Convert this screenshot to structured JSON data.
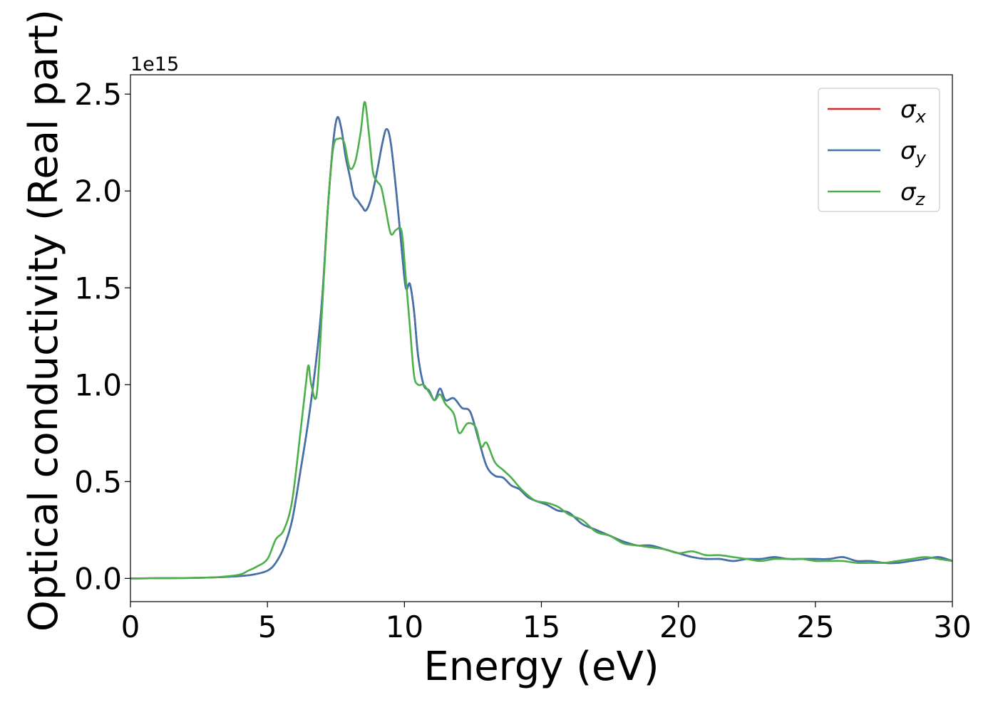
{
  "chart_data": {
    "type": "line",
    "title": "",
    "xlabel": "Energy (eV)",
    "ylabel": "Optical conductivity (Real part)",
    "y_offset_text": "1e15",
    "y_scale": 1000000000000000.0,
    "xlim": [
      0,
      30
    ],
    "ylim": [
      -0.12,
      2.6
    ],
    "x_ticks": [
      0,
      5,
      10,
      15,
      20,
      25,
      30
    ],
    "x_tick_labels": [
      "0",
      "5",
      "10",
      "15",
      "20",
      "25",
      "30"
    ],
    "y_ticks": [
      0.0,
      0.5,
      1.0,
      1.5,
      2.0,
      2.5
    ],
    "y_tick_labels": [
      "0.0",
      "0.5",
      "1.0",
      "1.5",
      "2.0",
      "2.5"
    ],
    "grid": false,
    "legend_position": "top-right",
    "series": [
      {
        "name": "σx",
        "symbol": "σ",
        "subscript": "x",
        "color": "#d62728",
        "x": [
          0,
          2,
          3,
          3.5,
          4,
          4.5,
          5,
          5.3,
          5.6,
          5.9,
          6.2,
          6.5,
          6.8,
          7.0,
          7.2,
          7.4,
          7.55,
          7.7,
          7.85,
          8.0,
          8.15,
          8.3,
          8.45,
          8.6,
          8.8,
          9.0,
          9.2,
          9.35,
          9.5,
          9.7,
          9.9,
          10.05,
          10.2,
          10.35,
          10.5,
          10.7,
          10.9,
          11.1,
          11.3,
          11.5,
          11.8,
          12.1,
          12.4,
          12.7,
          13.0,
          13.3,
          13.6,
          13.9,
          14.2,
          14.5,
          14.8,
          15.2,
          15.6,
          16.0,
          16.5,
          17.0,
          17.5,
          18.0,
          18.5,
          19.0,
          19.5,
          20.0,
          20.5,
          21.0,
          21.5,
          22.0,
          22.5,
          23.0,
          23.5,
          24.0,
          24.5,
          25.0,
          25.5,
          26.0,
          26.5,
          27.0,
          27.5,
          28.0,
          28.5,
          29.0,
          29.5,
          30.0
        ],
        "y": [
          0,
          0.002,
          0.005,
          0.008,
          0.012,
          0.02,
          0.04,
          0.08,
          0.16,
          0.3,
          0.55,
          0.82,
          1.15,
          1.45,
          1.9,
          2.25,
          2.38,
          2.32,
          2.18,
          2.08,
          1.98,
          1.95,
          1.92,
          1.9,
          1.97,
          2.1,
          2.25,
          2.32,
          2.25,
          2.0,
          1.7,
          1.5,
          1.52,
          1.38,
          1.15,
          1.0,
          0.97,
          0.92,
          0.98,
          0.92,
          0.93,
          0.88,
          0.86,
          0.72,
          0.58,
          0.53,
          0.52,
          0.48,
          0.46,
          0.42,
          0.4,
          0.38,
          0.35,
          0.34,
          0.28,
          0.25,
          0.22,
          0.19,
          0.17,
          0.17,
          0.15,
          0.13,
          0.11,
          0.1,
          0.1,
          0.09,
          0.1,
          0.1,
          0.11,
          0.1,
          0.1,
          0.1,
          0.1,
          0.11,
          0.09,
          0.09,
          0.08,
          0.08,
          0.09,
          0.1,
          0.11,
          0.09
        ]
      },
      {
        "name": "σy",
        "symbol": "σ",
        "subscript": "y",
        "color": "#3f73ad",
        "x": [
          0,
          2,
          3,
          3.5,
          4,
          4.5,
          5,
          5.3,
          5.6,
          5.9,
          6.2,
          6.5,
          6.8,
          7.0,
          7.2,
          7.4,
          7.55,
          7.7,
          7.85,
          8.0,
          8.15,
          8.3,
          8.45,
          8.6,
          8.8,
          9.0,
          9.2,
          9.35,
          9.5,
          9.7,
          9.9,
          10.05,
          10.2,
          10.35,
          10.5,
          10.7,
          10.9,
          11.1,
          11.3,
          11.5,
          11.8,
          12.1,
          12.4,
          12.7,
          13.0,
          13.3,
          13.6,
          13.9,
          14.2,
          14.5,
          14.8,
          15.2,
          15.6,
          16.0,
          16.5,
          17.0,
          17.5,
          18.0,
          18.5,
          19.0,
          19.5,
          20.0,
          20.5,
          21.0,
          21.5,
          22.0,
          22.5,
          23.0,
          23.5,
          24.0,
          24.5,
          25.0,
          25.5,
          26.0,
          26.5,
          27.0,
          27.5,
          28.0,
          28.5,
          29.0,
          29.5,
          30.0
        ],
        "y": [
          0,
          0.002,
          0.005,
          0.008,
          0.012,
          0.02,
          0.04,
          0.08,
          0.16,
          0.3,
          0.55,
          0.82,
          1.15,
          1.45,
          1.9,
          2.25,
          2.38,
          2.32,
          2.18,
          2.08,
          1.98,
          1.95,
          1.92,
          1.9,
          1.97,
          2.1,
          2.25,
          2.32,
          2.25,
          2.0,
          1.7,
          1.5,
          1.52,
          1.38,
          1.15,
          1.0,
          0.97,
          0.92,
          0.98,
          0.92,
          0.93,
          0.88,
          0.86,
          0.72,
          0.58,
          0.53,
          0.52,
          0.48,
          0.46,
          0.42,
          0.4,
          0.38,
          0.35,
          0.34,
          0.28,
          0.25,
          0.22,
          0.19,
          0.17,
          0.17,
          0.15,
          0.13,
          0.11,
          0.1,
          0.1,
          0.09,
          0.1,
          0.1,
          0.11,
          0.1,
          0.1,
          0.1,
          0.1,
          0.11,
          0.09,
          0.09,
          0.08,
          0.08,
          0.09,
          0.1,
          0.11,
          0.09
        ]
      },
      {
        "name": "σz",
        "symbol": "σ",
        "subscript": "z",
        "color": "#4daf4a",
        "x": [
          0,
          2,
          3,
          3.5,
          4,
          4.3,
          4.6,
          5.0,
          5.3,
          5.6,
          5.9,
          6.2,
          6.4,
          6.5,
          6.6,
          6.8,
          7.0,
          7.2,
          7.4,
          7.6,
          7.8,
          8.0,
          8.2,
          8.4,
          8.55,
          8.7,
          8.85,
          9.0,
          9.15,
          9.3,
          9.5,
          9.7,
          9.9,
          10.05,
          10.2,
          10.35,
          10.5,
          10.7,
          10.9,
          11.1,
          11.3,
          11.5,
          11.8,
          12.0,
          12.3,
          12.6,
          12.8,
          13.0,
          13.3,
          13.6,
          13.9,
          14.2,
          14.5,
          14.8,
          15.2,
          15.6,
          16.0,
          16.5,
          17.0,
          17.5,
          18.0,
          18.5,
          19.0,
          19.5,
          20.0,
          20.5,
          21.0,
          21.5,
          22.0,
          22.5,
          23.0,
          23.5,
          24.0,
          24.5,
          25.0,
          25.5,
          26.0,
          26.5,
          27.0,
          27.5,
          28.0,
          28.5,
          29.0,
          29.5,
          30.0
        ],
        "y": [
          0,
          0.002,
          0.005,
          0.01,
          0.02,
          0.04,
          0.06,
          0.1,
          0.2,
          0.25,
          0.4,
          0.75,
          1.0,
          1.1,
          1.0,
          0.95,
          1.4,
          1.9,
          2.22,
          2.27,
          2.25,
          2.12,
          2.15,
          2.3,
          2.46,
          2.3,
          2.1,
          2.05,
          2.02,
          1.92,
          1.78,
          1.8,
          1.79,
          1.55,
          1.3,
          1.05,
          1.0,
          1.0,
          0.96,
          0.92,
          0.95,
          0.9,
          0.85,
          0.75,
          0.8,
          0.78,
          0.68,
          0.7,
          0.6,
          0.56,
          0.52,
          0.47,
          0.43,
          0.4,
          0.39,
          0.37,
          0.33,
          0.3,
          0.24,
          0.22,
          0.18,
          0.17,
          0.16,
          0.15,
          0.13,
          0.14,
          0.12,
          0.12,
          0.11,
          0.1,
          0.09,
          0.1,
          0.1,
          0.1,
          0.09,
          0.09,
          0.09,
          0.08,
          0.08,
          0.08,
          0.09,
          0.1,
          0.11,
          0.1,
          0.09
        ]
      }
    ]
  }
}
